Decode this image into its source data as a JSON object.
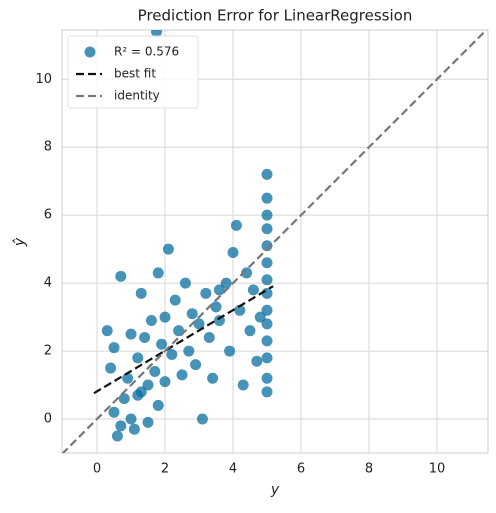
{
  "chart_data": {
    "type": "scatter",
    "title": "Prediction Error for LinearRegression",
    "x_label": "y",
    "y_label": "ŷ",
    "xlim": [
      -1.03,
      11.5
    ],
    "ylim": [
      -1.0,
      11.45
    ],
    "xticks": [
      0,
      2,
      4,
      6,
      8,
      10
    ],
    "yticks": [
      0,
      2,
      4,
      6,
      8,
      10
    ],
    "grid": true,
    "legend": "upper left",
    "series": [
      {
        "name": "R² = 0.576",
        "type": "scatter",
        "color": "#0a6f9f",
        "x": [
          0.5,
          0.6,
          0.7,
          0.4,
          0.3,
          0.5,
          0.8,
          0.9,
          1.0,
          1.0,
          1.1,
          1.2,
          1.3,
          1.3,
          1.4,
          1.5,
          1.5,
          1.75,
          1.6,
          1.7,
          1.8,
          1.8,
          1.9,
          2.0,
          2.0,
          2.1,
          2.2,
          2.3,
          2.4,
          2.5,
          2.6,
          2.7,
          2.8,
          2.9,
          3.0,
          3.1,
          3.2,
          3.3,
          3.4,
          3.5,
          3.6,
          3.8,
          3.9,
          4.0,
          4.1,
          4.2,
          4.3,
          4.4,
          4.5,
          4.6,
          4.7,
          4.8,
          5.0,
          5.0,
          5.0,
          5.0,
          5.0,
          5.0,
          5.0,
          5.0,
          5.0,
          5.0,
          5.0,
          5.0,
          5.0,
          5.0,
          3.6,
          1.2,
          0.7
        ],
        "values": [
          0.2,
          -0.5,
          4.2,
          1.5,
          2.6,
          2.1,
          0.6,
          1.2,
          2.5,
          0.0,
          -0.3,
          1.8,
          0.8,
          3.7,
          2.4,
          1.0,
          -0.1,
          11.4,
          2.9,
          1.4,
          4.3,
          0.4,
          2.2,
          3.0,
          1.1,
          5.0,
          1.9,
          3.5,
          2.6,
          1.3,
          4.0,
          2.0,
          3.1,
          1.6,
          2.8,
          0.0,
          3.7,
          2.4,
          1.2,
          3.3,
          2.9,
          4.0,
          2.0,
          4.9,
          5.7,
          3.2,
          1.0,
          4.3,
          2.6,
          3.8,
          1.7,
          3.0,
          0.8,
          1.2,
          1.8,
          2.3,
          2.8,
          3.2,
          3.7,
          4.1,
          4.6,
          5.1,
          5.6,
          6.0,
          6.5,
          7.2,
          3.8,
          0.7,
          -0.2
        ]
      },
      {
        "name": "best fit",
        "type": "line",
        "color": "#111111",
        "x": [
          -0.09,
          5.18
        ],
        "values": [
          0.76,
          3.91
        ]
      },
      {
        "name": "identity",
        "type": "line",
        "color": "#777777",
        "x": [
          -1.03,
          11.5
        ],
        "values": [
          -1.03,
          11.5
        ]
      }
    ]
  }
}
